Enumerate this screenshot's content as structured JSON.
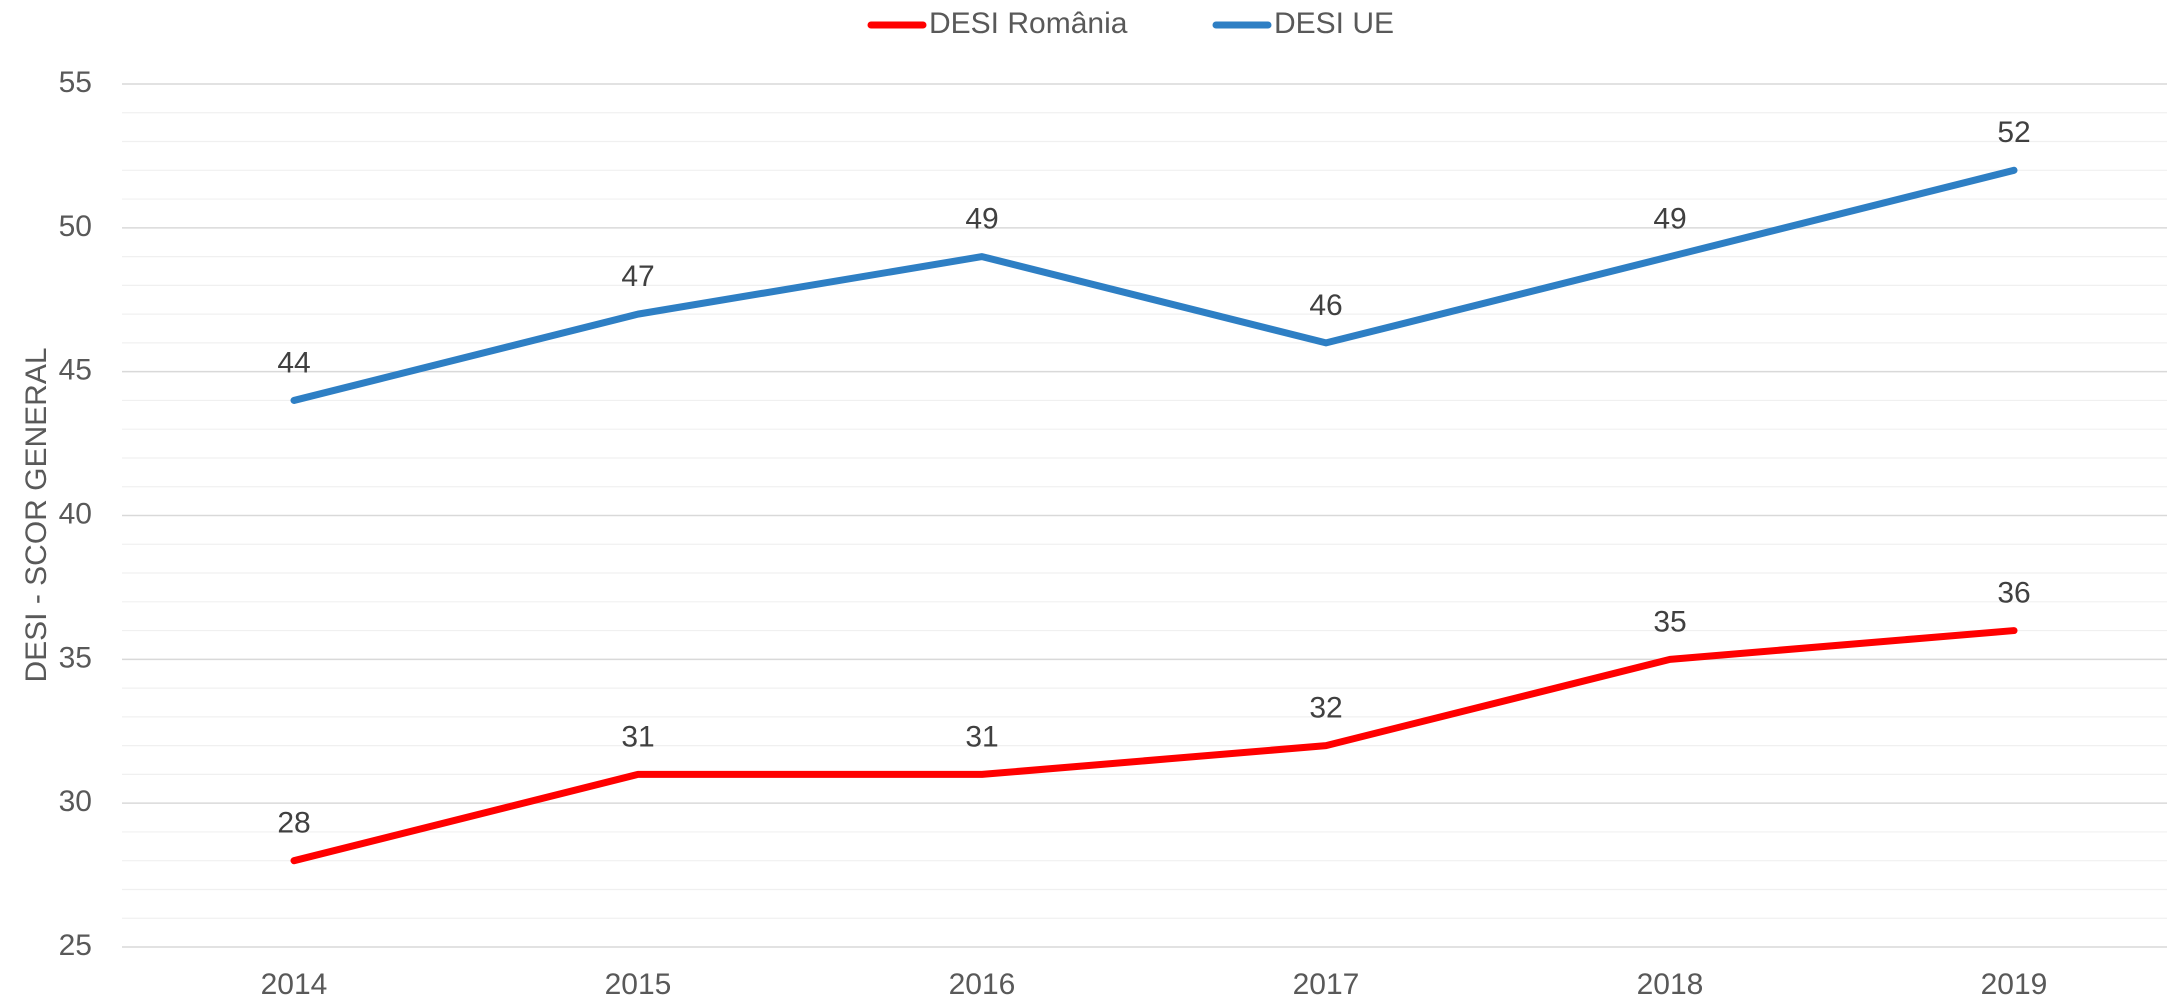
{
  "chart_data": {
    "type": "line",
    "y_label": "DESI - SCOR GENERAL",
    "categories": [
      "2014",
      "2015",
      "2016",
      "2017",
      "2018",
      "2019"
    ],
    "series": [
      {
        "name": "DESI România",
        "color": "#ff0000",
        "values": [
          28,
          31,
          31,
          32,
          35,
          36
        ]
      },
      {
        "name": "DESI UE",
        "color": "#2e7fc4",
        "values": [
          44,
          47,
          49,
          46,
          49,
          52
        ]
      }
    ],
    "ylim": [
      25,
      55
    ],
    "yticks": [
      25,
      30,
      35,
      40,
      45,
      50,
      55
    ],
    "minor_yticks": [
      26,
      27,
      28,
      29,
      31,
      32,
      33,
      34,
      36,
      37,
      38,
      39,
      41,
      42,
      43,
      44,
      46,
      47,
      48,
      49,
      51,
      52,
      53,
      54
    ],
    "grid": true,
    "legend": "top"
  }
}
